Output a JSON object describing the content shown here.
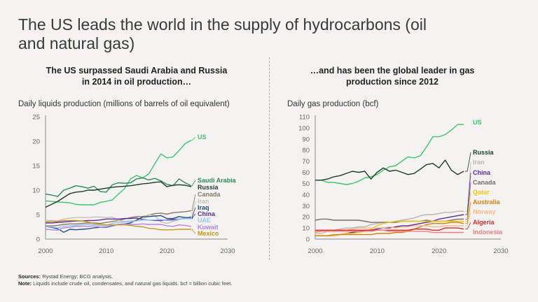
{
  "title": "The US leads the world in the supply of hydrocarbons (oil and natural gas)",
  "divider": true,
  "notes": {
    "sources_label": "Sources:",
    "sources": "Rystad Energy; BCG analysis.",
    "note_label": "Note:",
    "note": "Liquids include crude oil, condensates, and natural gas liquids. bcf = billion cubic feet."
  },
  "chart_data": [
    {
      "type": "line",
      "subtitle": "The US surpassed Saudi Arabia and Russia in 2014 in oil production…",
      "ylabel": "Daily liquids production (millions of barrels of oil equivalent)",
      "xlim": [
        2000,
        2030
      ],
      "ylim": [
        0,
        25
      ],
      "xticks": [
        2000,
        2010,
        2020,
        2030
      ],
      "yticks": [
        0,
        5,
        10,
        15,
        20,
        25
      ],
      "grid": false,
      "legend": "direct labels at right",
      "x": [
        2000,
        2001,
        2002,
        2003,
        2004,
        2005,
        2006,
        2007,
        2008,
        2009,
        2010,
        2011,
        2012,
        2013,
        2014,
        2015,
        2016,
        2017,
        2018,
        2019,
        2020,
        2021,
        2022,
        2023,
        2024
      ],
      "series": [
        {
          "name": "US",
          "color": "#3ec46d",
          "values": [
            7.8,
            7.7,
            7.6,
            7.5,
            7.4,
            7.1,
            7.0,
            7.0,
            7.0,
            7.5,
            7.7,
            8.0,
            9.2,
            10.3,
            12.3,
            13.0,
            12.5,
            13.3,
            15.4,
            17.4,
            16.6,
            16.8,
            18.1,
            19.5,
            20.2
          ]
        },
        {
          "name": "Saudi Arabia",
          "color": "#2e8b5a",
          "values": [
            9.2,
            9.0,
            8.7,
            10.0,
            10.4,
            10.9,
            10.7,
            10.4,
            10.8,
            9.7,
            9.6,
            11.1,
            11.5,
            11.4,
            11.5,
            12.3,
            12.5,
            12.1,
            12.4,
            11.9,
            11.2,
            10.9,
            12.3,
            11.5,
            10.9
          ]
        },
        {
          "name": "Russia",
          "color": "#1d3a2a",
          "values": [
            6.5,
            7.1,
            7.7,
            8.5,
            9.3,
            9.6,
            9.7,
            10.0,
            10.0,
            10.2,
            10.4,
            10.6,
            10.7,
            10.8,
            10.9,
            11.1,
            11.3,
            11.4,
            11.6,
            11.7,
            10.7,
            11.0,
            11.1,
            11.0,
            10.7
          ]
        },
        {
          "name": "Canada",
          "color": "#8b7765",
          "values": [
            2.7,
            2.7,
            2.8,
            3.0,
            3.1,
            3.1,
            3.2,
            3.3,
            3.3,
            3.2,
            3.4,
            3.6,
            3.8,
            4.1,
            4.4,
            4.6,
            4.6,
            4.9,
            5.2,
            5.3,
            5.1,
            5.4,
            5.5,
            5.6,
            5.8
          ]
        },
        {
          "name": "Iran",
          "color": "#c9bfb5",
          "values": [
            3.8,
            3.8,
            3.7,
            4.1,
            4.3,
            4.4,
            4.4,
            4.4,
            4.5,
            4.5,
            4.4,
            4.5,
            3.8,
            3.6,
            3.7,
            3.8,
            4.5,
            5.0,
            4.8,
            3.5,
            3.2,
            3.6,
            4.0,
            4.3,
            4.6
          ]
        },
        {
          "name": "Iraq",
          "color": "#1f4e8a",
          "values": [
            2.6,
            2.4,
            2.1,
            1.4,
            2.0,
            1.9,
            2.0,
            2.1,
            2.3,
            2.4,
            2.4,
            2.7,
            3.0,
            3.1,
            3.3,
            3.9,
            4.5,
            4.6,
            4.7,
            4.8,
            4.2,
            4.2,
            4.6,
            4.4,
            4.4
          ]
        },
        {
          "name": "China",
          "color": "#5b2ba0",
          "values": [
            3.3,
            3.3,
            3.4,
            3.5,
            3.6,
            3.7,
            3.7,
            3.8,
            3.8,
            3.9,
            4.1,
            4.1,
            4.1,
            4.2,
            4.2,
            4.3,
            4.0,
            3.9,
            3.8,
            3.8,
            3.9,
            4.0,
            4.1,
            4.2,
            4.2
          ]
        },
        {
          "name": "UAE",
          "color": "#8ec3ef",
          "values": [
            2.6,
            2.5,
            2.3,
            2.6,
            2.7,
            2.8,
            2.9,
            3.0,
            3.0,
            2.7,
            2.8,
            3.2,
            3.4,
            3.5,
            3.6,
            3.7,
            3.9,
            3.9,
            3.9,
            4.0,
            3.8,
            3.8,
            4.1,
            4.2,
            4.2
          ]
        },
        {
          "name": "Kuwait",
          "color": "#b584e0",
          "values": [
            2.0,
            1.9,
            1.8,
            2.3,
            2.4,
            2.6,
            2.6,
            2.6,
            2.7,
            2.4,
            2.5,
            2.8,
            3.0,
            3.1,
            3.0,
            3.0,
            3.1,
            3.0,
            3.0,
            3.0,
            2.7,
            2.6,
            2.9,
            2.8,
            2.6
          ]
        },
        {
          "name": "Mexico",
          "color": "#c9961c",
          "values": [
            3.5,
            3.6,
            3.6,
            3.8,
            3.8,
            3.8,
            3.7,
            3.5,
            3.2,
            3.0,
            2.9,
            2.9,
            2.9,
            2.9,
            2.8,
            2.6,
            2.5,
            2.2,
            2.1,
            1.9,
            1.9,
            1.9,
            2.0,
            2.0,
            2.0
          ]
        }
      ]
    },
    {
      "type": "line",
      "subtitle": "…and has been the global leader in gas production since 2012",
      "ylabel": "Daily gas production (bcf)",
      "xlim": [
        2000,
        2030
      ],
      "ylim": [
        0,
        110
      ],
      "xticks": [
        2000,
        2010,
        2020,
        2030
      ],
      "yticks": [
        0,
        10,
        20,
        30,
        40,
        50,
        60,
        70,
        80,
        90,
        100,
        110
      ],
      "grid": false,
      "legend": "direct labels at right",
      "x": [
        2000,
        2001,
        2002,
        2003,
        2004,
        2005,
        2006,
        2007,
        2008,
        2009,
        2010,
        2011,
        2012,
        2013,
        2014,
        2015,
        2016,
        2017,
        2018,
        2019,
        2020,
        2021,
        2022,
        2023,
        2024
      ],
      "series": [
        {
          "name": "US",
          "color": "#3ec46d",
          "values": [
            53,
            53,
            51,
            51,
            50,
            49,
            50,
            52,
            55,
            56,
            58,
            62,
            65,
            66,
            70,
            74,
            73,
            75,
            83,
            92,
            92,
            94,
            98,
            103,
            103
          ]
        },
        {
          "name": "Russia",
          "color": "#1d3a2a",
          "values": [
            53,
            53,
            54,
            56,
            57,
            59,
            61,
            60,
            61,
            54,
            60,
            64,
            61,
            62,
            60,
            58,
            59,
            63,
            67,
            68,
            64,
            71,
            62,
            58,
            61
          ]
        },
        {
          "name": "Iran",
          "color": "#bdb5ad",
          "values": [
            6,
            7,
            8,
            8,
            9,
            10,
            10,
            11,
            11,
            13,
            14,
            15,
            15,
            16,
            17,
            18,
            19,
            21,
            22,
            22,
            23,
            24,
            24,
            25,
            25
          ]
        },
        {
          "name": "China",
          "color": "#5b2ba0",
          "values": [
            3,
            3,
            3,
            3,
            4,
            5,
            6,
            7,
            8,
            8,
            9,
            10,
            10,
            11,
            12,
            12,
            13,
            14,
            15,
            16,
            18,
            19,
            20,
            21,
            22
          ]
        },
        {
          "name": "Canada",
          "color": "#7a6e66",
          "values": [
            17,
            18,
            18,
            17,
            17,
            17,
            17,
            17,
            16,
            15,
            15,
            15,
            15,
            15,
            16,
            16,
            16,
            16,
            17,
            16,
            16,
            16,
            17,
            18,
            18
          ]
        },
        {
          "name": "Qatar",
          "color": "#f5c518",
          "values": [
            3,
            3,
            3,
            3,
            4,
            5,
            5,
            6,
            7,
            9,
            12,
            14,
            15,
            16,
            16,
            16,
            16,
            16,
            16,
            16,
            16,
            16,
            16,
            16,
            16
          ]
        },
        {
          "name": "Australia",
          "color": "#d4820f",
          "values": [
            3,
            3,
            3,
            4,
            4,
            4,
            4,
            4,
            4,
            4,
            5,
            5,
            5,
            6,
            6,
            7,
            9,
            11,
            13,
            14,
            14,
            14,
            15,
            15,
            14
          ]
        },
        {
          "name": "Norway",
          "color": "#f7b98a",
          "values": [
            5,
            5,
            7,
            7,
            8,
            8,
            9,
            10,
            10,
            10,
            10,
            10,
            11,
            10,
            11,
            11,
            12,
            12,
            12,
            11,
            11,
            12,
            12,
            12,
            12
          ]
        },
        {
          "name": "Algeria",
          "color": "#d42a2a",
          "values": [
            8,
            8,
            8,
            8,
            8,
            8,
            8,
            8,
            8,
            8,
            8,
            8,
            8,
            8,
            8,
            8,
            9,
            9,
            9,
            8,
            8,
            10,
            10,
            10,
            9
          ]
        },
        {
          "name": "Indonesia",
          "color": "#f08080",
          "values": [
            7,
            7,
            7,
            7,
            7,
            7,
            7,
            7,
            7,
            7,
            8,
            8,
            7,
            7,
            7,
            7,
            7,
            7,
            7,
            6,
            6,
            6,
            6,
            6,
            6
          ]
        }
      ]
    }
  ]
}
